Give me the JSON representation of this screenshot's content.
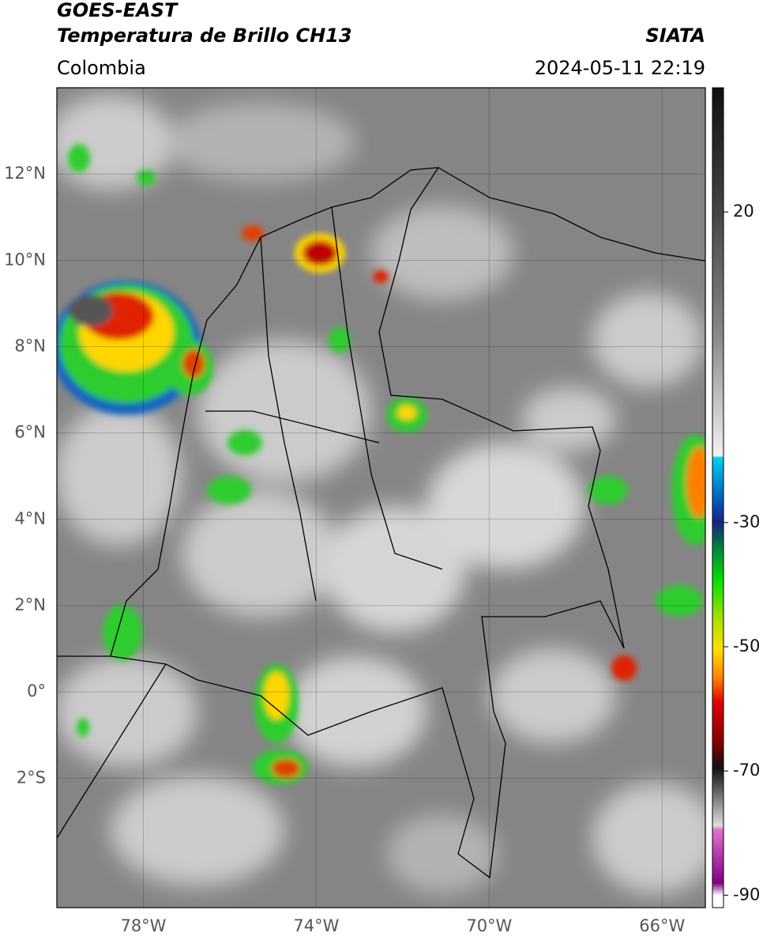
{
  "header": {
    "title_line1": "GOES-EAST",
    "title_line2": "Temperatura de Brillo CH13",
    "source": "SIATA",
    "region": "Colombia",
    "datetime": "2024-05-11 22:19"
  },
  "map": {
    "lon_range": [
      -80,
      -65
    ],
    "lat_range": [
      -5,
      14
    ],
    "grid": true,
    "lon_ticks": [
      {
        "value": -78,
        "label": "78°W"
      },
      {
        "value": -74,
        "label": "74°W"
      },
      {
        "value": -70,
        "label": "70°W"
      },
      {
        "value": -66,
        "label": "66°W"
      }
    ],
    "lat_ticks": [
      {
        "value": 12,
        "label": "12°N"
      },
      {
        "value": 10,
        "label": "10°N"
      },
      {
        "value": 8,
        "label": "8°N"
      },
      {
        "value": 6,
        "label": "6°N"
      },
      {
        "value": 4,
        "label": "4°N"
      },
      {
        "value": 2,
        "label": "2°N"
      },
      {
        "value": 0,
        "label": "0°"
      },
      {
        "value": -2,
        "label": "2°S"
      }
    ]
  },
  "colorbar": {
    "range": [
      -92,
      40
    ],
    "ticks": [
      20,
      -30,
      -50,
      -70,
      -90
    ]
  }
}
